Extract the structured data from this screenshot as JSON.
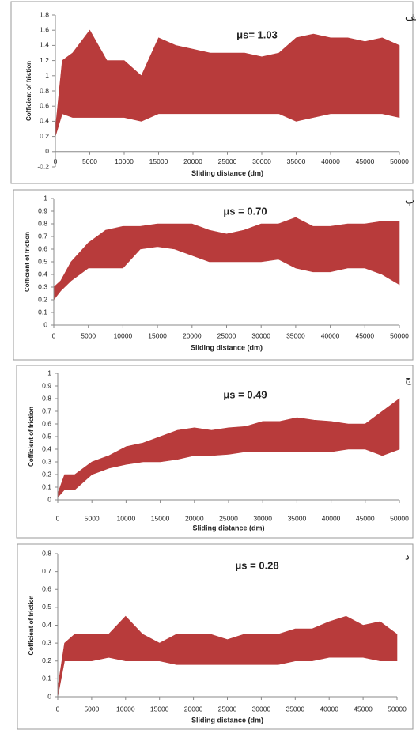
{
  "chart_data": [
    {
      "type": "range_area",
      "label": "الف",
      "annotation": "μs= 1.03",
      "xlabel": "Sliding distance (dm)",
      "ylabel": "Cofficient of friction",
      "color": "#b83b3b",
      "x": [
        0,
        1000,
        2500,
        5000,
        7500,
        10000,
        12500,
        15000,
        17500,
        20000,
        22500,
        25000,
        27500,
        30000,
        32500,
        35000,
        37500,
        40000,
        42500,
        45000,
        47500,
        50000
      ],
      "high": [
        0.3,
        1.2,
        1.3,
        1.6,
        1.2,
        1.2,
        1.0,
        1.5,
        1.4,
        1.35,
        1.3,
        1.3,
        1.3,
        1.25,
        1.3,
        1.5,
        1.55,
        1.5,
        1.5,
        1.45,
        1.5,
        1.4
      ],
      "low": [
        0.2,
        0.5,
        0.45,
        0.45,
        0.45,
        0.45,
        0.4,
        0.5,
        0.5,
        0.5,
        0.5,
        0.5,
        0.5,
        0.5,
        0.5,
        0.4,
        0.45,
        0.5,
        0.5,
        0.5,
        0.5,
        0.45
      ],
      "xlim": [
        0,
        50000
      ],
      "xticks": [
        0,
        5000,
        10000,
        15000,
        20000,
        25000,
        30000,
        35000,
        40000,
        45000,
        50000
      ],
      "ylim": [
        -0.2,
        1.8
      ],
      "yticks": [
        -0.2,
        0,
        0.2,
        0.4,
        0.6,
        0.8,
        1,
        1.2,
        1.4,
        1.6,
        1.8
      ]
    },
    {
      "type": "range_area",
      "label": "ب",
      "annotation": "μs = 0.70",
      "xlabel": "Sliding distance (dm)",
      "ylabel": "Cofficient of friction",
      "color": "#b83b3b",
      "x": [
        0,
        1000,
        2500,
        5000,
        7500,
        10000,
        12500,
        15000,
        17500,
        20000,
        22500,
        25000,
        27500,
        30000,
        32500,
        35000,
        37500,
        40000,
        42500,
        45000,
        47500,
        50000
      ],
      "high": [
        0.3,
        0.35,
        0.5,
        0.65,
        0.75,
        0.78,
        0.78,
        0.8,
        0.8,
        0.8,
        0.75,
        0.72,
        0.75,
        0.8,
        0.8,
        0.85,
        0.78,
        0.78,
        0.8,
        0.8,
        0.82,
        0.82
      ],
      "low": [
        0.2,
        0.27,
        0.35,
        0.45,
        0.45,
        0.45,
        0.6,
        0.62,
        0.6,
        0.55,
        0.5,
        0.5,
        0.5,
        0.5,
        0.52,
        0.45,
        0.42,
        0.42,
        0.45,
        0.45,
        0.4,
        0.32
      ],
      "xlim": [
        0,
        50000
      ],
      "xticks": [
        0,
        5000,
        10000,
        15000,
        20000,
        25000,
        30000,
        35000,
        40000,
        45000,
        50000
      ],
      "ylim": [
        0,
        1
      ],
      "yticks": [
        0,
        0.1,
        0.2,
        0.3,
        0.4,
        0.5,
        0.6,
        0.7,
        0.8,
        0.9,
        1
      ]
    },
    {
      "type": "range_area",
      "label": "ج",
      "annotation": "μs = 0.49",
      "xlabel": "Sliding distance (dm)",
      "ylabel": "Cofficient of friction",
      "color": "#b83b3b",
      "x": [
        0,
        1000,
        2500,
        5000,
        7500,
        10000,
        12500,
        15000,
        17500,
        20000,
        22500,
        25000,
        27500,
        30000,
        32500,
        35000,
        37500,
        40000,
        42500,
        45000,
        47500,
        50000
      ],
      "high": [
        0.05,
        0.2,
        0.2,
        0.3,
        0.35,
        0.42,
        0.45,
        0.5,
        0.55,
        0.57,
        0.55,
        0.57,
        0.58,
        0.62,
        0.62,
        0.65,
        0.63,
        0.62,
        0.6,
        0.6,
        0.7,
        0.8
      ],
      "low": [
        0.02,
        0.08,
        0.08,
        0.2,
        0.25,
        0.28,
        0.3,
        0.3,
        0.32,
        0.35,
        0.35,
        0.36,
        0.38,
        0.38,
        0.38,
        0.38,
        0.38,
        0.38,
        0.4,
        0.4,
        0.35,
        0.4
      ],
      "xlim": [
        0,
        50000
      ],
      "xticks": [
        0,
        5000,
        10000,
        15000,
        20000,
        25000,
        30000,
        35000,
        40000,
        45000,
        50000
      ],
      "ylim": [
        0,
        1
      ],
      "yticks": [
        0,
        0.1,
        0.2,
        0.3,
        0.4,
        0.5,
        0.6,
        0.7,
        0.8,
        0.9,
        1
      ]
    },
    {
      "type": "range_area",
      "label": "د",
      "annotation": "μs = 0.28",
      "xlabel": "Sliding distance (dm)",
      "ylabel": "Cofficient of friction",
      "color": "#b83b3b",
      "x": [
        0,
        1000,
        2500,
        5000,
        7500,
        10000,
        12500,
        15000,
        17500,
        20000,
        22500,
        25000,
        27500,
        30000,
        32500,
        35000,
        37500,
        40000,
        42500,
        45000,
        47500,
        50000
      ],
      "high": [
        0.05,
        0.3,
        0.35,
        0.35,
        0.35,
        0.45,
        0.35,
        0.3,
        0.35,
        0.35,
        0.35,
        0.32,
        0.35,
        0.35,
        0.35,
        0.38,
        0.38,
        0.42,
        0.45,
        0.4,
        0.42,
        0.35
      ],
      "low": [
        0.0,
        0.2,
        0.2,
        0.2,
        0.22,
        0.2,
        0.2,
        0.2,
        0.18,
        0.18,
        0.18,
        0.18,
        0.18,
        0.18,
        0.18,
        0.2,
        0.2,
        0.22,
        0.22,
        0.22,
        0.2,
        0.2
      ],
      "xlim": [
        0,
        50000
      ],
      "xticks": [
        0,
        5000,
        10000,
        15000,
        20000,
        25000,
        30000,
        35000,
        40000,
        45000,
        50000
      ],
      "ylim": [
        0,
        0.8
      ],
      "yticks": [
        0,
        0.1,
        0.2,
        0.3,
        0.4,
        0.5,
        0.6,
        0.7,
        0.8
      ]
    }
  ]
}
